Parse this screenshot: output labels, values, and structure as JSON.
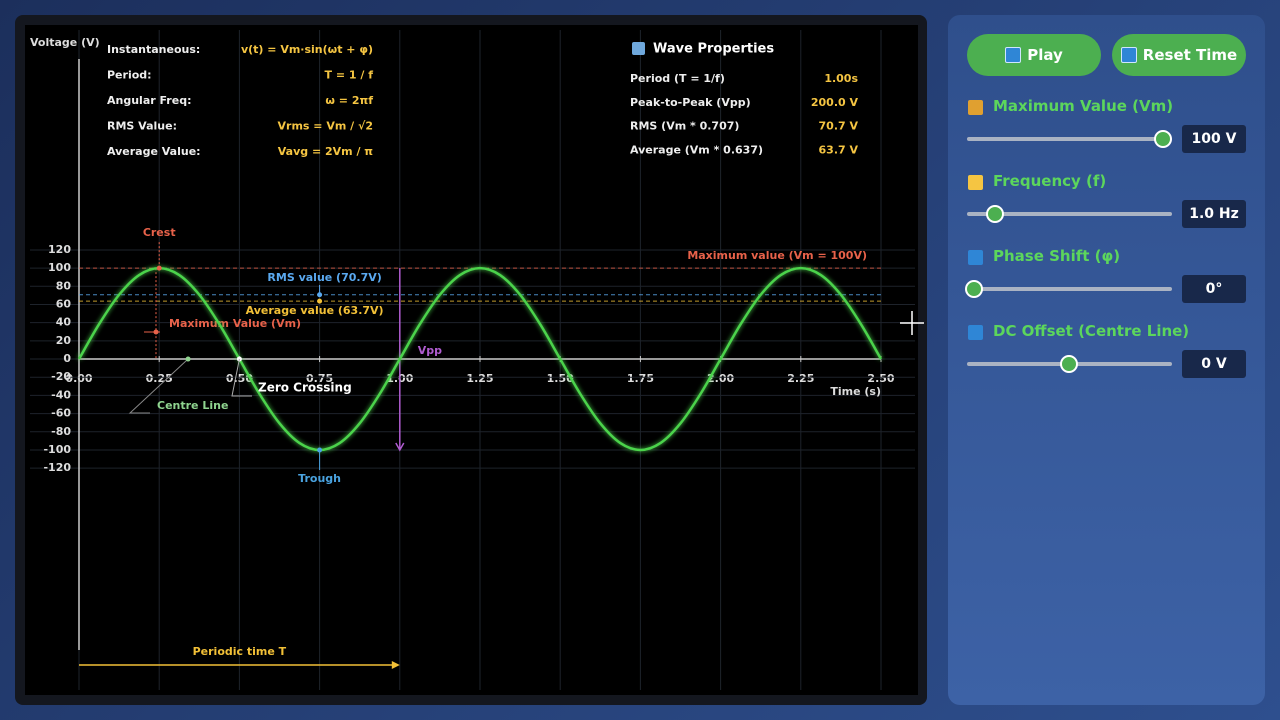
{
  "chart_data": {
    "type": "line",
    "y_label": "Voltage (V)",
    "x_label": "Time (s)",
    "x": [
      0,
      0.0625,
      0.125,
      0.1875,
      0.25,
      0.3125,
      0.375,
      0.4375,
      0.5,
      0.5625,
      0.625,
      0.6875,
      0.75,
      0.8125,
      0.875,
      0.9375,
      1,
      1.0625,
      1.125,
      1.1875,
      1.25,
      1.3125,
      1.375,
      1.4375,
      1.5,
      1.5625,
      1.625,
      1.6875,
      1.75,
      1.8125,
      1.875,
      1.9375,
      2,
      2.0625,
      2.125,
      2.1875,
      2.25,
      2.3125,
      2.375,
      2.4375,
      2.5
    ],
    "series": [
      {
        "color": "#4cd34c",
        "values": [
          0,
          38.3,
          70.7,
          92.4,
          100,
          92.4,
          70.7,
          38.3,
          0,
          -38.3,
          -70.7,
          -92.4,
          -100,
          -92.4,
          -70.7,
          -38.3,
          0,
          38.3,
          70.7,
          92.4,
          100,
          92.4,
          70.7,
          38.3,
          0,
          -38.3,
          -70.7,
          -92.4,
          -100,
          -92.4,
          -70.7,
          -38.3,
          0,
          38.3,
          70.7,
          92.4,
          100,
          92.4,
          70.7,
          38.3,
          0
        ]
      }
    ],
    "xlim": [
      0,
      2.5
    ],
    "xticks": [
      {
        "value": 0,
        "label": "0.00"
      },
      {
        "value": 0.25,
        "label": "0.25"
      },
      {
        "value": 0.5,
        "label": "0.50"
      },
      {
        "value": 0.75,
        "label": "0.75"
      },
      {
        "value": 1,
        "label": "1.00"
      },
      {
        "value": 1.25,
        "label": "1.25"
      },
      {
        "value": 1.5,
        "label": "1.50"
      },
      {
        "value": 1.75,
        "label": "1.75"
      },
      {
        "value": 2,
        "label": "2.00"
      },
      {
        "value": 2.25,
        "label": "2.25"
      },
      {
        "value": 2.5,
        "label": "2.50"
      }
    ],
    "ylim": [
      -320,
      330
    ],
    "yticks": [
      -120,
      -100,
      -80,
      -60,
      -40,
      -20,
      0,
      20,
      40,
      60,
      80,
      100,
      120
    ],
    "grid": true,
    "reference_lines": [
      {
        "value": 100,
        "label": "Maximum value (Vm = 100V)",
        "color": "#e8624a"
      },
      {
        "value": 70.7,
        "label": "RMS value (70.7V)",
        "color": "#5aa9f0"
      },
      {
        "value": 63.7,
        "label": "Average value (63.7V)",
        "color": "#f2c037"
      }
    ],
    "points": [
      {
        "label": "Crest",
        "x": 0.25,
        "y": 100,
        "color": "#e8624a"
      },
      {
        "label": "Trough",
        "x": 0.75,
        "y": -100,
        "color": "#4aa3e0"
      },
      {
        "label": "Zero Crossing",
        "x": 0.5,
        "y": 0,
        "color": "#ffffff"
      }
    ],
    "vpp": {
      "label": "Vpp",
      "x": 1,
      "from": 100,
      "to": -100,
      "color": "#b05cd0"
    },
    "annotations": {
      "max_value": "Maximum Value (Vm)",
      "centre_line": "Centre Line",
      "period": "Periodic time T"
    }
  },
  "formulas": [
    {
      "label": "Instantaneous:",
      "formula": "v(t) = Vm·sin(ωt + φ)"
    },
    {
      "label": "Period:",
      "formula": "T = 1 / f"
    },
    {
      "label": "Angular Freq:",
      "formula": "ω = 2πf"
    },
    {
      "label": "RMS Value:",
      "formula": "Vrms = Vm / √2"
    },
    {
      "label": "Average Value:",
      "formula": "Vavg = 2Vm / π"
    }
  ],
  "properties": {
    "title": "Wave Properties",
    "rows": [
      {
        "label": "Period (T = 1/f)",
        "value": "1.00s"
      },
      {
        "label": "Peak-to-Peak (Vpp)",
        "value": "200.0 V"
      },
      {
        "label": "RMS (Vm * 0.707)",
        "value": "70.7 V"
      },
      {
        "label": "Average (Vm * 0.637)",
        "value": "63.7 V"
      }
    ]
  },
  "controls": {
    "buttons": [
      "Play",
      "Reset Time"
    ],
    "sliders": [
      {
        "label": "Maximum Value (Vm)",
        "value": "100 V"
      },
      {
        "label": "Frequency (f)",
        "value": "1.0 Hz"
      },
      {
        "label": "Phase Shift (φ)",
        "value": "0°"
      },
      {
        "label": "DC Offset (Centre Line)",
        "value": "0 V"
      }
    ]
  }
}
